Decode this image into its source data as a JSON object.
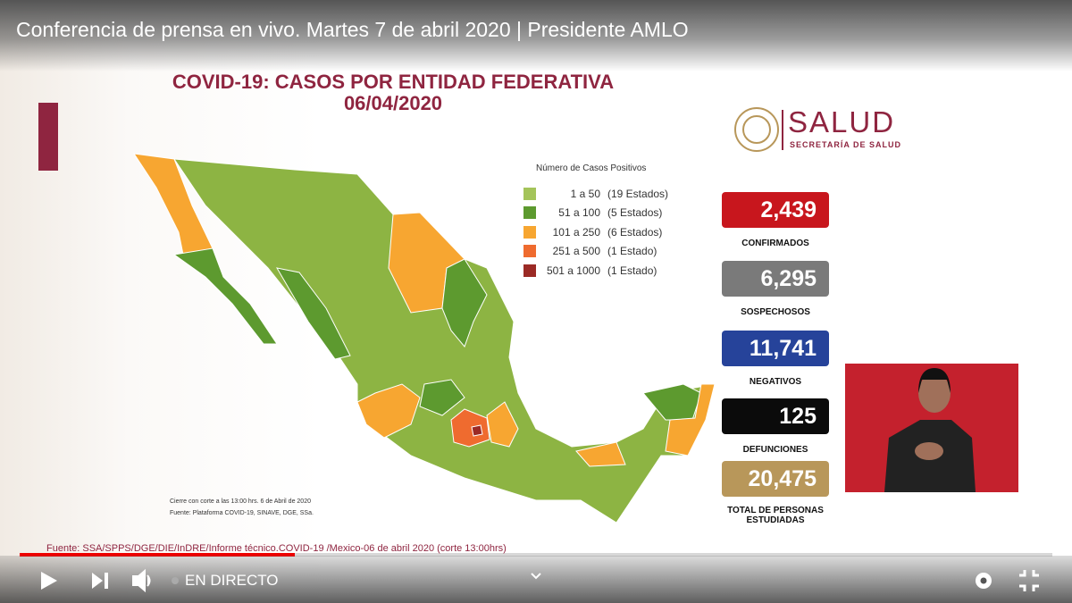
{
  "player": {
    "title": "Conferencia de prensa en vivo. Martes 7 de abril 2020 | Presidente AMLO",
    "live_label": "EN DIRECTO"
  },
  "slide": {
    "title": "COVID-19: CASOS POR ENTIDAD FEDERATIVA",
    "date": "06/04/2020",
    "logo": {
      "name": "SALUD",
      "subtitle": "SECRETARÍA DE SALUD"
    },
    "legend": {
      "title": "Número de Casos Positivos",
      "items": [
        {
          "range": "1 a 50",
          "count": "(19 Estados)"
        },
        {
          "range": "51 a 100",
          "count": "(5 Estados)"
        },
        {
          "range": "101 a 250",
          "count": "(6 Estados)"
        },
        {
          "range": "251 a 500",
          "count": "(1 Estado)"
        },
        {
          "range": "501 a 1000",
          "count": "(1 Estado)"
        }
      ]
    },
    "stats": [
      {
        "value": "2,439",
        "label": "CONFIRMADOS"
      },
      {
        "value": "6,295",
        "label": "SOSPECHOSOS"
      },
      {
        "value": "11,741",
        "label": "NEGATIVOS"
      },
      {
        "value": "125",
        "label": "DEFUNCIONES"
      },
      {
        "value": "20,475",
        "label": "TOTAL DE PERSONAS ESTUDIADAS"
      }
    ],
    "notes": [
      "Cierre con corte a las 13:00 hrs. 6 de Abril de 2020",
      "Fuente: Plataforma COVID-19, SINAVE, DGE, SSa."
    ],
    "source": "Fuente: SSA/SPPS/DGE/DIE/InDRE/Informe técnico.COVID-19 /Mexico-06 de abril 2020 (corte 13:00hrs)"
  }
}
